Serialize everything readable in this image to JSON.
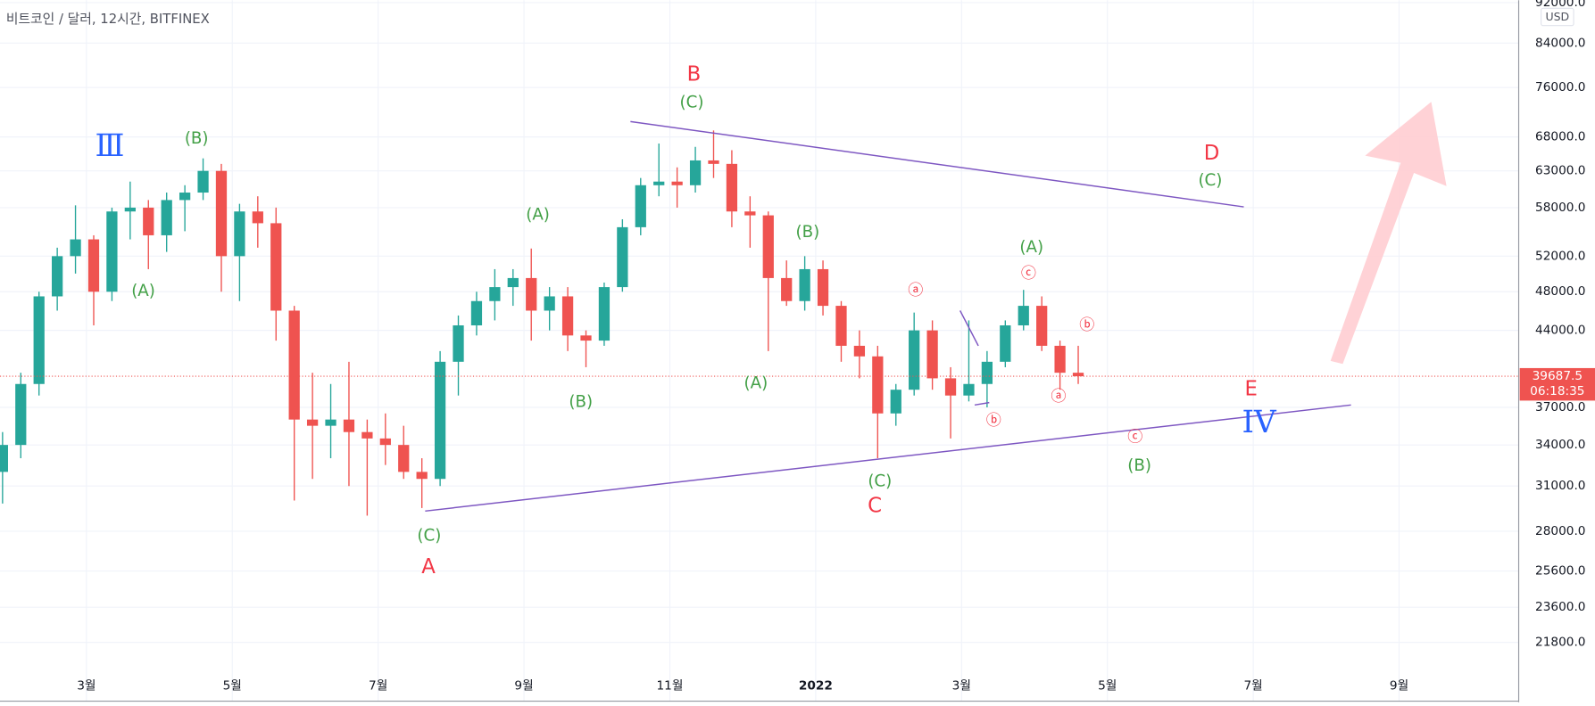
{
  "chart_data": {
    "type": "candlestick",
    "title": "비트코인 / 달러, 12시간, BITFINEX",
    "currency": "USD",
    "up_color": "#26a69a",
    "down_color": "#ef5350",
    "grid": true,
    "log_scale": true,
    "x": [
      0.85,
      1.1,
      1.35,
      1.6,
      1.85,
      2.1,
      2.35,
      2.6,
      2.85,
      3.1,
      3.35,
      3.6,
      3.85,
      4.1,
      4.35,
      4.6,
      4.85,
      5.1,
      5.35,
      5.6,
      5.85,
      6.1,
      6.35,
      6.6,
      6.85,
      7.1,
      7.35,
      7.6,
      7.85,
      8.1,
      8.35,
      8.6,
      8.85,
      9.1,
      9.35,
      9.6,
      9.85,
      10.1,
      10.35,
      10.6,
      10.85,
      11.1,
      11.35,
      11.6,
      11.85,
      12.1,
      12.35,
      12.6,
      12.85,
      13.1,
      13.35,
      13.6,
      13.85,
      14.1,
      14.35,
      14.6,
      14.85,
      15.1,
      15.35,
      15.6
    ],
    "open": [
      32000,
      34000,
      39000,
      47500,
      52000,
      54000,
      48000,
      57500,
      58000,
      54500,
      59000,
      60000,
      63000,
      52000,
      57500,
      56000,
      46000,
      36000,
      35500,
      36000,
      35000,
      34500,
      34000,
      32000,
      31500,
      41000,
      44500,
      47000,
      48500,
      49500,
      46000,
      47500,
      43500,
      43000,
      48500,
      55500,
      61000,
      61500,
      61000,
      64500,
      64000,
      57500,
      57000,
      49500,
      47000,
      50500,
      46500,
      42500,
      41500,
      36500,
      38500,
      44000,
      39500,
      38000,
      39000,
      41000,
      44500,
      46500,
      42500,
      40000
    ],
    "high": [
      35000,
      40000,
      48000,
      53000,
      58300,
      54500,
      58000,
      61500,
      59000,
      60000,
      61000,
      64800,
      64000,
      58500,
      59500,
      58000,
      46500,
      40000,
      39000,
      41000,
      36000,
      36500,
      35500,
      33000,
      42000,
      45500,
      48000,
      50500,
      50500,
      52900,
      48500,
      48500,
      44000,
      49000,
      56500,
      62000,
      67000,
      63500,
      66500,
      69000,
      66000,
      59500,
      57500,
      51500,
      52000,
      51500,
      47000,
      44000,
      42500,
      39000,
      45800,
      45000,
      40500,
      45000,
      42000,
      45000,
      48200,
      47500,
      43000,
      42500
    ],
    "low": [
      29800,
      33000,
      38000,
      46000,
      50000,
      44500,
      47000,
      54000,
      50500,
      52500,
      55000,
      59000,
      48000,
      47000,
      53000,
      43000,
      30000,
      31500,
      33000,
      31000,
      29000,
      32500,
      31500,
      29500,
      31000,
      38000,
      43500,
      45000,
      46500,
      43000,
      44000,
      42000,
      40500,
      42500,
      48000,
      54500,
      59500,
      58000,
      60000,
      62000,
      55500,
      53000,
      42000,
      46500,
      46000,
      45500,
      41000,
      39500,
      33000,
      35500,
      38000,
      38500,
      34500,
      37500,
      37000,
      40500,
      44000,
      42000,
      38500,
      39000
    ],
    "close": [
      34000,
      39000,
      47500,
      52000,
      54000,
      48000,
      57500,
      58000,
      54500,
      59000,
      60000,
      63000,
      52000,
      57500,
      56000,
      46000,
      36000,
      35500,
      36000,
      35000,
      34500,
      34000,
      32000,
      31500,
      41000,
      44500,
      47000,
      48500,
      49500,
      46000,
      47500,
      43500,
      43000,
      48500,
      55500,
      61000,
      61500,
      61000,
      64500,
      64000,
      57500,
      57000,
      49500,
      47000,
      50500,
      46500,
      42500,
      41500,
      36500,
      38500,
      44000,
      39500,
      38000,
      39000,
      41000,
      44500,
      46500,
      42500,
      40000,
      39687.5
    ],
    "last_price": 39687.5,
    "countdown": "06:18:35",
    "ylim": [
      19100,
      92500
    ],
    "yticks": [
      {
        "value": 21800,
        "label": "21800.0"
      },
      {
        "value": 23600,
        "label": "23600.0"
      },
      {
        "value": 25600,
        "label": "25600.0"
      },
      {
        "value": 28000,
        "label": "28000.0"
      },
      {
        "value": 31000,
        "label": "31000.0"
      },
      {
        "value": 34000,
        "label": "34000.0"
      },
      {
        "value": 37000,
        "label": "37000.0"
      },
      {
        "value": 44000,
        "label": "44000.0"
      },
      {
        "value": 48000,
        "label": "48000.0"
      },
      {
        "value": 52000,
        "label": "52000.0"
      },
      {
        "value": 58000,
        "label": "58000.0"
      },
      {
        "value": 63000,
        "label": "63000.0"
      },
      {
        "value": 68000,
        "label": "68000.0"
      },
      {
        "value": 76000,
        "label": "76000.0"
      },
      {
        "value": 84000,
        "label": "84000.0"
      },
      {
        "value": 92000,
        "label": "92000.0"
      }
    ],
    "xlim": [
      0.815,
      21.64
    ],
    "xticks": [
      {
        "value": 2,
        "label": "3월"
      },
      {
        "value": 4,
        "label": "5월"
      },
      {
        "value": 6,
        "label": "7월"
      },
      {
        "value": 8,
        "label": "9월"
      },
      {
        "value": 10,
        "label": "11월"
      },
      {
        "value": 12,
        "label": "2022"
      },
      {
        "value": 14,
        "label": "3월"
      },
      {
        "value": 16,
        "label": "5월"
      },
      {
        "value": 18,
        "label": "7월"
      },
      {
        "value": 20,
        "label": "9월"
      }
    ],
    "lines": [
      {
        "color": "#7e57c2",
        "x": [
          9.46,
          17.87
        ],
        "y": [
          70400,
          58100
        ]
      },
      {
        "color": "#7e57c2",
        "x": [
          6.645,
          19.34
        ],
        "y": [
          29300,
          37200
        ]
      },
      {
        "color": "#7e57c2",
        "x": [
          13.98,
          14.23
        ],
        "y": [
          46000,
          42500
        ]
      },
      {
        "color": "#7e57c2",
        "x": [
          14.18,
          14.38
        ],
        "y": [
          37200,
          37400
        ]
      }
    ],
    "annotations": [
      {
        "text": "Ⅲ",
        "x": 2.32,
        "y": 66300,
        "color": "#2962ff"
      },
      {
        "text": "(B)",
        "x": 3.51,
        "y": 67700,
        "color": "#43a047"
      },
      {
        "text": "(A)",
        "x": 2.78,
        "y": 48000,
        "color": "#43a047"
      },
      {
        "text": "B",
        "x": 10.33,
        "y": 78200,
        "color": "#f23645"
      },
      {
        "text": "(C)",
        "x": 10.3,
        "y": 73400,
        "color": "#43a047"
      },
      {
        "text": "(A)",
        "x": 8.19,
        "y": 57000,
        "color": "#43a047"
      },
      {
        "text": "(B)",
        "x": 8.78,
        "y": 37400,
        "color": "#43a047"
      },
      {
        "text": "(C)",
        "x": 6.7,
        "y": 27700,
        "color": "#43a047"
      },
      {
        "text": "A",
        "x": 6.69,
        "y": 25800,
        "color": "#f23645"
      },
      {
        "text": "(B)",
        "x": 11.89,
        "y": 54800,
        "color": "#43a047"
      },
      {
        "text": "(A)",
        "x": 11.18,
        "y": 39000,
        "color": "#43a047"
      },
      {
        "text": "(C)",
        "x": 12.88,
        "y": 31300,
        "color": "#43a047"
      },
      {
        "text": "C",
        "x": 12.81,
        "y": 29600,
        "color": "#f23645"
      },
      {
        "text": "ⓐ",
        "x": 13.37,
        "y": 48100,
        "color": "#f23645"
      },
      {
        "text": "ⓑ",
        "x": 14.44,
        "y": 35900,
        "color": "#f23645"
      },
      {
        "text": "ⓒ",
        "x": 14.92,
        "y": 50000,
        "color": "#f23645"
      },
      {
        "text": "(A)",
        "x": 14.96,
        "y": 53000,
        "color": "#43a047"
      },
      {
        "text": "ⓑ",
        "x": 15.72,
        "y": 44500,
        "color": "#f23645"
      },
      {
        "text": "ⓐ",
        "x": 15.33,
        "y": 37900,
        "color": "#f23645"
      },
      {
        "text": "ⓒ",
        "x": 16.38,
        "y": 34600,
        "color": "#f23645"
      },
      {
        "text": "(B)",
        "x": 16.44,
        "y": 32400,
        "color": "#43a047"
      },
      {
        "text": "D",
        "x": 17.43,
        "y": 65500,
        "color": "#f23645"
      },
      {
        "text": "(C)",
        "x": 17.41,
        "y": 61600,
        "color": "#43a047"
      },
      {
        "text": "E",
        "x": 17.97,
        "y": 38500,
        "color": "#f23645"
      },
      {
        "text": "IV",
        "x": 18.08,
        "y": 35600,
        "color": "#2962ff"
      }
    ]
  }
}
